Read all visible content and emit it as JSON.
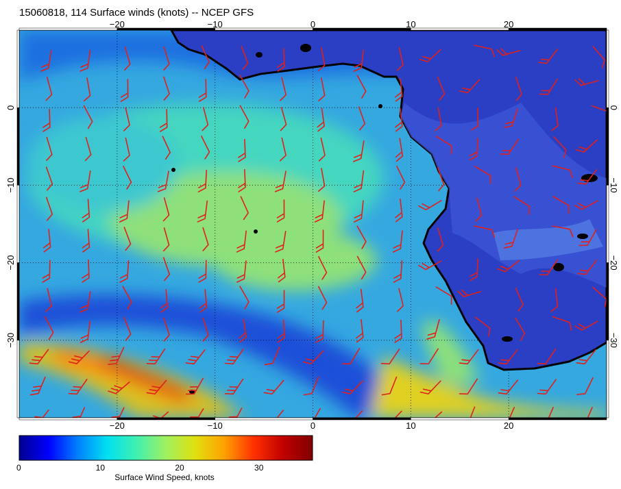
{
  "title": "15060818, 114 Surface winds (knots) -- NCEP GFS",
  "map": {
    "lon_range": [
      -30,
      30
    ],
    "lat_range": [
      -40,
      10
    ],
    "lon_ticks": [
      {
        "v": -20,
        "label": "−20"
      },
      {
        "v": -10,
        "label": "−10"
      },
      {
        "v": 0,
        "label": "0"
      },
      {
        "v": 10,
        "label": "10"
      },
      {
        "v": 20,
        "label": "20"
      }
    ],
    "lat_ticks": [
      {
        "v": 0,
        "label": "0"
      },
      {
        "v": -10,
        "label": "−10"
      },
      {
        "v": -20,
        "label": "−20"
      },
      {
        "v": -30,
        "label": "−30"
      }
    ],
    "land_color": "#2b3fc4",
    "coast_color": "#000000",
    "barb_color": "#e0201a",
    "grid": "dotted"
  },
  "colorbar": {
    "label": "Surface Wind Speed, knots",
    "ticks": [
      {
        "v": 0,
        "label": "0"
      },
      {
        "v": 10,
        "label": "10"
      },
      {
        "v": 20,
        "label": "20"
      },
      {
        "v": 30,
        "label": "30"
      }
    ],
    "max": 37,
    "colormap": [
      "#00008f",
      "#0000ff",
      "#0080ff",
      "#00e0f0",
      "#40f0b0",
      "#a0f060",
      "#e0e010",
      "#ffa000",
      "#ff3000",
      "#c00000",
      "#800000"
    ]
  }
}
